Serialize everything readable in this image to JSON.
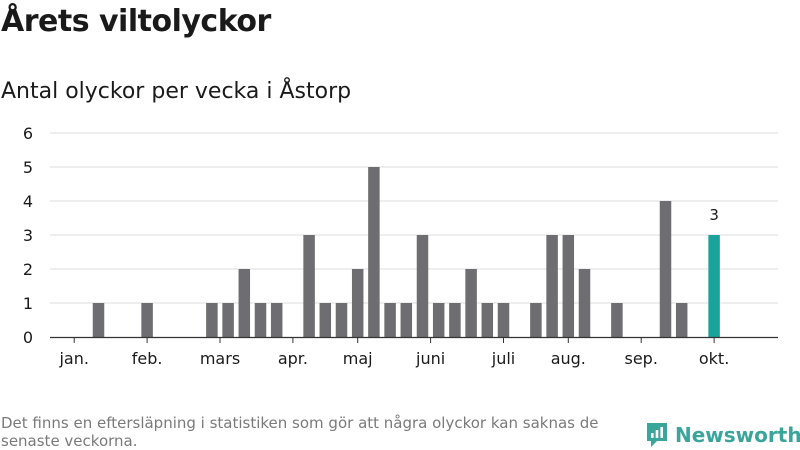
{
  "title": "Årets viltolyckor",
  "subtitle": "Antal olyckor per vecka i Åstorp",
  "footnote": "Det finns en eftersläpning i statistiken som gör att några olyckor kan saknas de senaste veckorna.",
  "brand": {
    "name": "Newsworthy",
    "logo_icon": "newsworthy-logo-icon",
    "color": "#3aa59b"
  },
  "chart_data": {
    "type": "bar",
    "weeks": [
      1,
      2,
      3,
      4,
      5,
      6,
      7,
      8,
      9,
      10,
      11,
      12,
      13,
      14,
      15,
      16,
      17,
      18,
      19,
      20,
      21,
      22,
      23,
      24,
      25,
      26,
      27,
      28,
      29,
      30,
      31,
      32,
      33,
      34,
      35,
      36,
      37,
      38,
      39,
      40,
      41
    ],
    "values": [
      0,
      0,
      0,
      1,
      0,
      0,
      1,
      0,
      0,
      0,
      1,
      1,
      2,
      1,
      1,
      0,
      3,
      1,
      1,
      2,
      5,
      1,
      1,
      3,
      1,
      1,
      2,
      1,
      1,
      0,
      1,
      3,
      3,
      2,
      0,
      1,
      0,
      0,
      4,
      1,
      0
    ],
    "partial_weeks": [
      42
    ],
    "partial_values": [
      3
    ],
    "highlight_label": "3",
    "month_labels": [
      "jan.",
      "feb.",
      "mars",
      "apr.",
      "maj",
      "juni",
      "juli",
      "aug.",
      "sep.",
      "okt."
    ],
    "month_positions": [
      2.5,
      7,
      11.5,
      16,
      20,
      24.5,
      29,
      33,
      37.5,
      42
    ],
    "y_ticks": [
      0,
      1,
      2,
      3,
      4,
      5,
      6
    ],
    "ylim": [
      0,
      6
    ],
    "grid": true,
    "colors": {
      "bar": "#6e6d72",
      "highlight": "#1aa39b",
      "grid": "#dcdcdc",
      "axis": "#333333"
    }
  }
}
